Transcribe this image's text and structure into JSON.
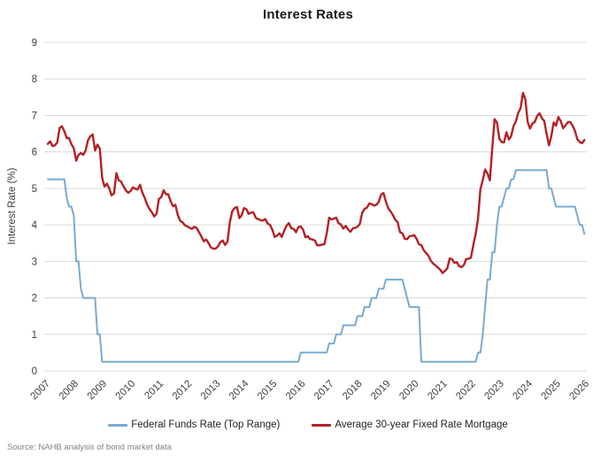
{
  "header": {
    "title": "Interest Rates"
  },
  "footer": {
    "source": "Source: NAHB analysis of bond market data"
  },
  "chart_data": {
    "type": "line",
    "title": "Interest Rates",
    "xlabel": "",
    "ylabel": "Interest Rate (%)",
    "ylim": [
      0,
      9
    ],
    "yticks": [
      0,
      1,
      2,
      3,
      4,
      5,
      6,
      7,
      8,
      9
    ],
    "grid": "horizontal",
    "grid_color": "#d9d9d9",
    "tick_label_color": "#404040",
    "legend_position": "bottom",
    "x_years": [
      2007,
      2008,
      2009,
      2010,
      2011,
      2012,
      2013,
      2014,
      2015,
      2016,
      2017,
      2018,
      2019,
      2020,
      2021,
      2022,
      2023,
      2024,
      2025,
      2026
    ],
    "x_start_year": 2007,
    "points_per_year": 12,
    "series": [
      {
        "name": "Federal Funds Rate (Top Range)",
        "color": "#78ABD2",
        "stroke_width": 2,
        "values": [
          5.25,
          5.25,
          5.25,
          5.25,
          5.25,
          5.25,
          5.25,
          5.25,
          4.75,
          4.5,
          4.5,
          4.25,
          3,
          3,
          2.25,
          2,
          2,
          2,
          2,
          2,
          2,
          1,
          1,
          0.25,
          0.25,
          0.25,
          0.25,
          0.25,
          0.25,
          0.25,
          0.25,
          0.25,
          0.25,
          0.25,
          0.25,
          0.25,
          0.25,
          0.25,
          0.25,
          0.25,
          0.25,
          0.25,
          0.25,
          0.25,
          0.25,
          0.25,
          0.25,
          0.25,
          0.25,
          0.25,
          0.25,
          0.25,
          0.25,
          0.25,
          0.25,
          0.25,
          0.25,
          0.25,
          0.25,
          0.25,
          0.25,
          0.25,
          0.25,
          0.25,
          0.25,
          0.25,
          0.25,
          0.25,
          0.25,
          0.25,
          0.25,
          0.25,
          0.25,
          0.25,
          0.25,
          0.25,
          0.25,
          0.25,
          0.25,
          0.25,
          0.25,
          0.25,
          0.25,
          0.25,
          0.25,
          0.25,
          0.25,
          0.25,
          0.25,
          0.25,
          0.25,
          0.25,
          0.25,
          0.25,
          0.25,
          0.25,
          0.25,
          0.25,
          0.25,
          0.25,
          0.25,
          0.25,
          0.25,
          0.25,
          0.25,
          0.25,
          0.25,
          0.5,
          0.5,
          0.5,
          0.5,
          0.5,
          0.5,
          0.5,
          0.5,
          0.5,
          0.5,
          0.5,
          0.5,
          0.75,
          0.75,
          0.75,
          1,
          1,
          1,
          1.25,
          1.25,
          1.25,
          1.25,
          1.25,
          1.25,
          1.5,
          1.5,
          1.5,
          1.75,
          1.75,
          1.75,
          2,
          2,
          2,
          2.25,
          2.25,
          2.25,
          2.5,
          2.5,
          2.5,
          2.5,
          2.5,
          2.5,
          2.5,
          2.5,
          2.25,
          2,
          1.75,
          1.75,
          1.75,
          1.75,
          1.75,
          0.25,
          0.25,
          0.25,
          0.25,
          0.25,
          0.25,
          0.25,
          0.25,
          0.25,
          0.25,
          0.25,
          0.25,
          0.25,
          0.25,
          0.25,
          0.25,
          0.25,
          0.25,
          0.25,
          0.25,
          0.25,
          0.25,
          0.25,
          0.25,
          0.5,
          0.5,
          1,
          1.75,
          2.5,
          2.5,
          3.25,
          3.25,
          4,
          4.5,
          4.5,
          4.75,
          5,
          5,
          5.25,
          5.25,
          5.5,
          5.5,
          5.5,
          5.5,
          5.5,
          5.5,
          5.5,
          5.5,
          5.5,
          5.5,
          5.5,
          5.5,
          5.5,
          5.5,
          5,
          5,
          4.75,
          4.5,
          4.5,
          4.5,
          4.5,
          4.5,
          4.5,
          4.5,
          4.5,
          4.5,
          4.25,
          4,
          4,
          3.75
        ]
      },
      {
        "name": "Average 30-year Fixed Rate Mortgage",
        "color": "#B42025",
        "stroke_width": 2.4,
        "values": [
          6.22,
          6.29,
          6.16,
          6.18,
          6.26,
          6.66,
          6.7,
          6.57,
          6.38,
          6.38,
          6.21,
          6.1,
          5.76,
          5.92,
          5.97,
          5.92,
          6.04,
          6.32,
          6.43,
          6.48,
          6.04,
          6.2,
          6.09,
          5.29,
          5.05,
          5.13,
          5.0,
          4.81,
          4.86,
          5.42,
          5.22,
          5.19,
          5.06,
          4.95,
          4.88,
          4.93,
          5.03,
          4.99,
          4.97,
          5.1,
          4.89,
          4.74,
          4.56,
          4.43,
          4.35,
          4.23,
          4.3,
          4.71,
          4.76,
          4.95,
          4.84,
          4.84,
          4.64,
          4.51,
          4.55,
          4.27,
          4.11,
          4.07,
          3.99,
          3.96,
          3.92,
          3.89,
          3.95,
          3.91,
          3.8,
          3.68,
          3.55,
          3.6,
          3.5,
          3.38,
          3.35,
          3.35,
          3.41,
          3.53,
          3.57,
          3.45,
          3.54,
          4.07,
          4.37,
          4.46,
          4.49,
          4.19,
          4.26,
          4.46,
          4.43,
          4.3,
          4.34,
          4.34,
          4.19,
          4.16,
          4.13,
          4.12,
          4.16,
          4.04,
          4.0,
          3.86,
          3.67,
          3.71,
          3.77,
          3.67,
          3.84,
          3.98,
          4.05,
          3.91,
          3.89,
          3.8,
          3.94,
          3.96,
          3.87,
          3.66,
          3.69,
          3.61,
          3.6,
          3.57,
          3.44,
          3.44,
          3.46,
          3.47,
          3.77,
          4.2,
          4.15,
          4.17,
          4.2,
          4.05,
          4.01,
          3.9,
          3.97,
          3.88,
          3.81,
          3.9,
          3.92,
          3.95,
          4.03,
          4.33,
          4.44,
          4.47,
          4.59,
          4.57,
          4.53,
          4.55,
          4.63,
          4.83,
          4.87,
          4.64,
          4.46,
          4.37,
          4.27,
          4.14,
          4.07,
          3.8,
          3.77,
          3.62,
          3.61,
          3.69,
          3.7,
          3.72,
          3.62,
          3.47,
          3.45,
          3.31,
          3.23,
          3.16,
          3.02,
          2.94,
          2.89,
          2.83,
          2.77,
          2.68,
          2.74,
          2.81,
          3.08,
          3.06,
          2.96,
          2.98,
          2.87,
          2.84,
          2.9,
          3.07,
          3.07,
          3.1,
          3.45,
          3.76,
          4.17,
          4.98,
          5.23,
          5.52,
          5.41,
          5.22,
          6.11,
          6.9,
          6.81,
          6.36,
          6.27,
          6.26,
          6.54,
          6.34,
          6.43,
          6.71,
          6.84,
          7.07,
          7.2,
          7.62,
          7.44,
          6.82,
          6.64,
          6.78,
          6.82,
          6.99,
          7.06,
          6.92,
          6.85,
          6.5,
          6.18,
          6.43,
          6.81,
          6.72,
          6.96,
          6.84,
          6.65,
          6.73,
          6.82,
          6.82,
          6.72,
          6.58,
          6.35,
          6.27,
          6.24,
          6.33
        ]
      }
    ]
  }
}
